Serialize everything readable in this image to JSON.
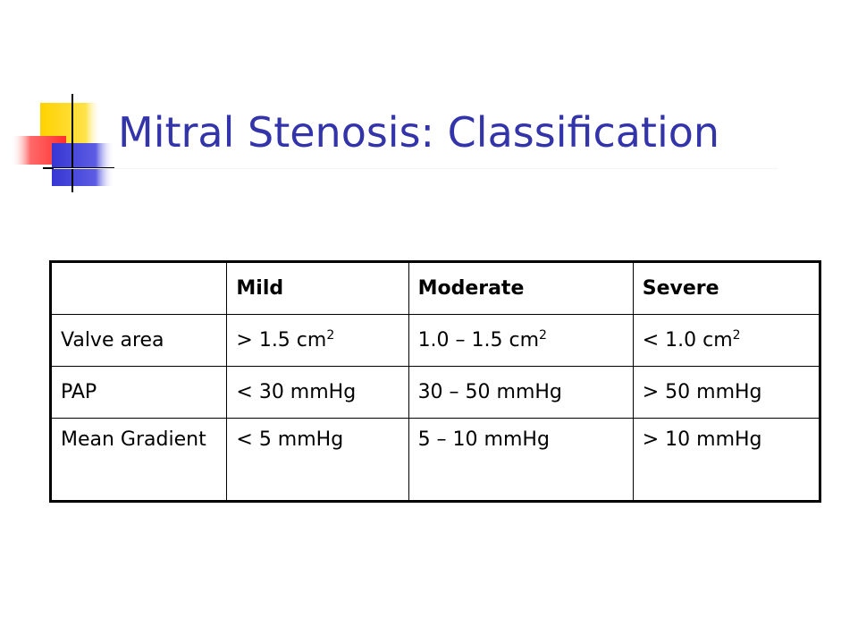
{
  "slide": {
    "title": "Mitral Stenosis: Classification"
  },
  "table": {
    "headers": [
      "",
      "Mild",
      "Moderate",
      "Severe"
    ],
    "rows": [
      {
        "label": "Valve area",
        "cells": [
          {
            "value": "> 1.5 cm",
            "sup": "2"
          },
          {
            "value": "1.0 – 1.5 cm",
            "sup": "2"
          },
          {
            "value": "< 1.0 cm",
            "sup": "2"
          }
        ]
      },
      {
        "label": "PAP",
        "cells": [
          {
            "value": "< 30 mmHg"
          },
          {
            "value": "30 – 50 mmHg"
          },
          {
            "value": "> 50 mmHg"
          }
        ]
      },
      {
        "label": "Mean Gradient",
        "cells": [
          {
            "value": "< 5 mmHg"
          },
          {
            "value": "5 – 10 mmHg"
          },
          {
            "value": "> 10 mmHg"
          }
        ]
      }
    ]
  },
  "colors": {
    "title": "#3333aa",
    "decor_yellow": "#ffd200",
    "decor_red": "#ff3a3a",
    "decor_blue": "#3a3ad8"
  }
}
